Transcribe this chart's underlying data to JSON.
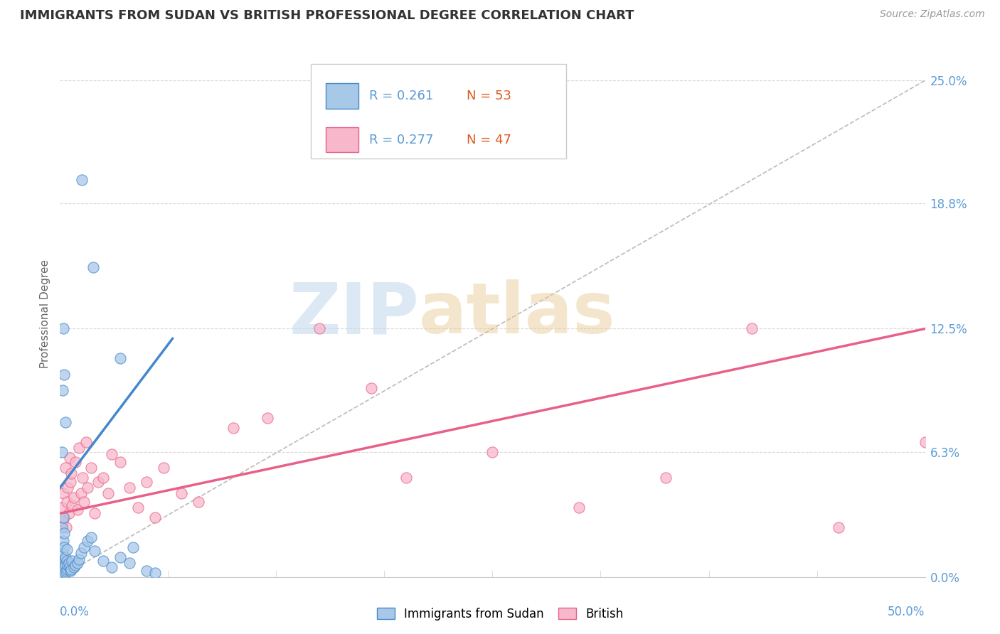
{
  "title": "IMMIGRANTS FROM SUDAN VS BRITISH PROFESSIONAL DEGREE CORRELATION CHART",
  "source": "Source: ZipAtlas.com",
  "ylabel": "Professional Degree",
  "ytick_labels": [
    "0.0%",
    "6.3%",
    "12.5%",
    "18.8%",
    "25.0%"
  ],
  "ytick_values": [
    0.0,
    6.3,
    12.5,
    18.8,
    25.0
  ],
  "xtick_left": "0.0%",
  "xtick_right": "50.0%",
  "xlim": [
    0.0,
    50.0
  ],
  "ylim": [
    0.0,
    26.5
  ],
  "legend_blue_R": "0.261",
  "legend_blue_N": "53",
  "legend_pink_R": "0.277",
  "legend_pink_N": "47",
  "blue_fill": "#a8c8e8",
  "blue_edge": "#4488cc",
  "pink_fill": "#f8b8cc",
  "pink_edge": "#e86088",
  "blue_trend_x": [
    0.0,
    6.5
  ],
  "blue_trend_y": [
    4.5,
    12.0
  ],
  "pink_trend_x": [
    0.0,
    50.0
  ],
  "pink_trend_y": [
    3.2,
    12.5
  ],
  "ref_line_x": [
    0.0,
    50.0
  ],
  "ref_line_y": [
    0.0,
    25.0
  ],
  "grid_color": "#d8d8d8",
  "title_color": "#333333",
  "axis_label_color": "#5b9bd5",
  "legend_R_color": "#5b9bd5",
  "legend_N_color": "#e05a20",
  "blue_scatter_x": [
    0.05,
    0.08,
    0.1,
    0.12,
    0.12,
    0.15,
    0.15,
    0.18,
    0.18,
    0.2,
    0.2,
    0.22,
    0.22,
    0.25,
    0.25,
    0.28,
    0.3,
    0.3,
    0.32,
    0.35,
    0.38,
    0.4,
    0.42,
    0.45,
    0.5,
    0.55,
    0.6,
    0.65,
    0.7,
    0.8,
    0.9,
    1.0,
    1.1,
    1.2,
    1.4,
    1.6,
    1.8,
    2.0,
    2.5,
    3.0,
    3.5,
    4.0,
    5.0,
    0.1,
    0.15,
    0.2,
    0.25,
    0.3,
    1.25,
    1.9,
    3.5,
    4.2,
    5.5
  ],
  "blue_scatter_y": [
    0.2,
    0.5,
    0.1,
    0.8,
    2.5,
    0.3,
    1.2,
    0.6,
    3.0,
    0.4,
    1.8,
    0.7,
    2.2,
    0.5,
    1.5,
    0.9,
    0.2,
    1.0,
    0.6,
    0.3,
    1.4,
    0.8,
    0.4,
    0.6,
    0.7,
    0.5,
    0.3,
    0.4,
    0.8,
    0.5,
    0.6,
    0.7,
    0.9,
    1.2,
    1.5,
    1.8,
    2.0,
    1.3,
    0.8,
    0.5,
    1.0,
    0.7,
    0.3,
    6.3,
    9.4,
    12.5,
    10.2,
    7.8,
    20.0,
    15.6,
    11.0,
    1.5,
    0.2
  ],
  "pink_scatter_x": [
    0.1,
    0.15,
    0.2,
    0.25,
    0.3,
    0.35,
    0.4,
    0.45,
    0.5,
    0.55,
    0.6,
    0.65,
    0.7,
    0.8,
    0.9,
    1.0,
    1.1,
    1.2,
    1.3,
    1.4,
    1.5,
    1.6,
    1.8,
    2.0,
    2.2,
    2.5,
    2.8,
    3.0,
    3.5,
    4.0,
    4.5,
    5.0,
    5.5,
    6.0,
    7.0,
    8.0,
    10.0,
    12.0,
    15.0,
    18.0,
    20.0,
    25.0,
    30.0,
    35.0,
    40.0,
    45.0,
    50.0
  ],
  "pink_scatter_y": [
    3.5,
    2.8,
    4.2,
    3.0,
    5.5,
    2.5,
    3.8,
    4.5,
    3.2,
    6.0,
    4.8,
    5.2,
    3.6,
    4.0,
    5.8,
    3.4,
    6.5,
    4.2,
    5.0,
    3.8,
    6.8,
    4.5,
    5.5,
    3.2,
    4.8,
    5.0,
    4.2,
    6.2,
    5.8,
    4.5,
    3.5,
    4.8,
    3.0,
    5.5,
    4.2,
    3.8,
    7.5,
    8.0,
    12.5,
    9.5,
    5.0,
    6.3,
    3.5,
    5.0,
    12.5,
    2.5,
    6.8
  ]
}
